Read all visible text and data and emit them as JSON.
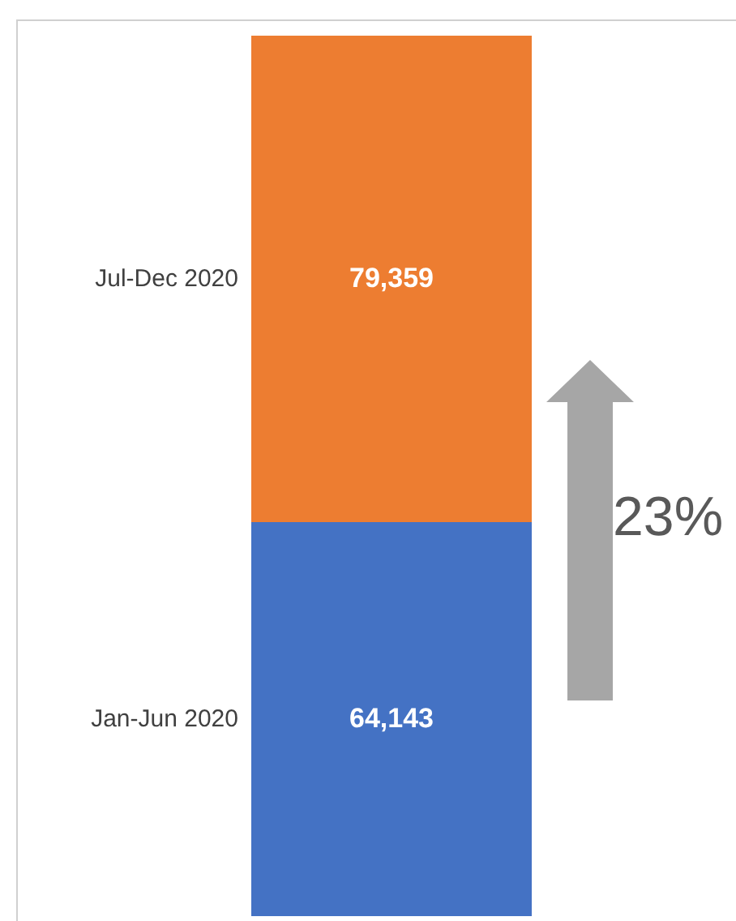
{
  "chart_data": {
    "type": "bar",
    "stacked": true,
    "categories": [
      null
    ],
    "series": [
      {
        "name": "Jan-Jun 2020",
        "color": "#4472c4",
        "values": [
          64143
        ],
        "value_labels": [
          "64,143"
        ]
      },
      {
        "name": "Jul-Dec 2020",
        "color": "#ed7d31",
        "values": [
          79359
        ],
        "value_labels": [
          "79,359"
        ]
      }
    ],
    "legend": false,
    "annotations": [
      "23%"
    ]
  }
}
